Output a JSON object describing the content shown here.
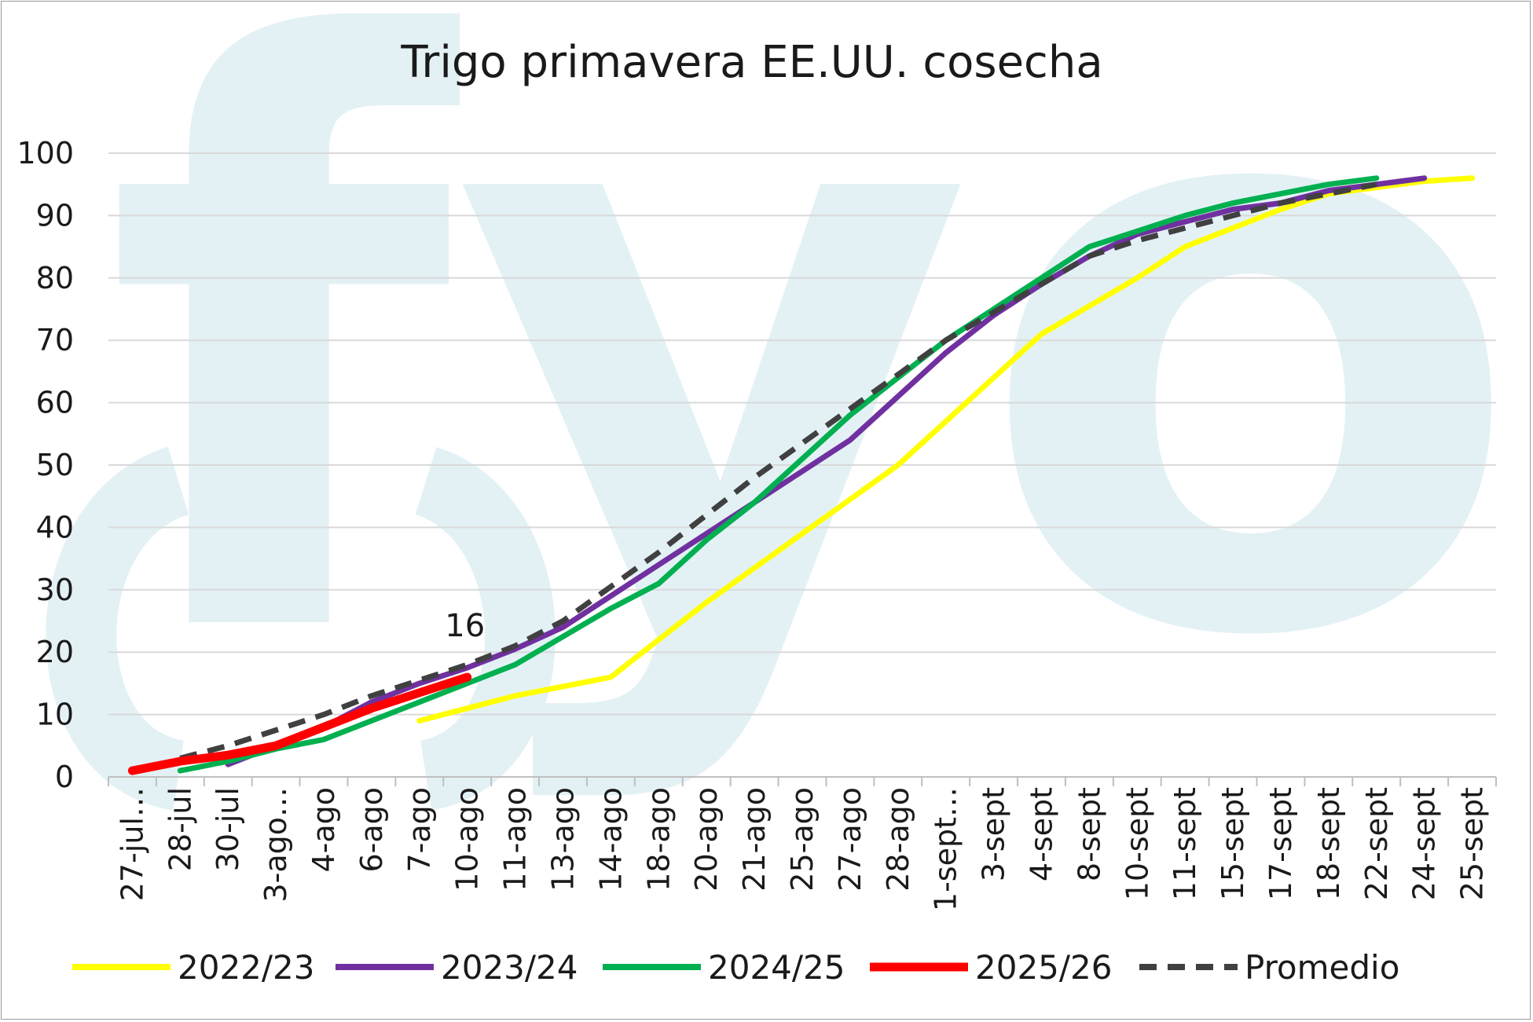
{
  "chart_data": {
    "type": "line",
    "title": "Trigo primavera EE.UU. cosecha",
    "xlabel": "",
    "ylabel": "",
    "ylim": [
      0,
      100
    ],
    "yticks": [
      0,
      10,
      20,
      30,
      40,
      50,
      60,
      70,
      80,
      90,
      100
    ],
    "grid": true,
    "legend_position": "bottom",
    "watermark": "fyo",
    "categories": [
      "27-jul…",
      "28-jul",
      "30-jul",
      "3-ago…",
      "4-ago",
      "6-ago",
      "7-ago",
      "10-ago",
      "11-ago",
      "13-ago",
      "14-ago",
      "18-ago",
      "20-ago",
      "21-ago",
      "25-ago",
      "27-ago",
      "28-ago",
      "1-sept…",
      "3-sept",
      "4-sept",
      "8-sept",
      "10-sept",
      "11-sept",
      "15-sept",
      "17-sept",
      "18-sept",
      "22-sept",
      "24-sept",
      "25-sept"
    ],
    "series": [
      {
        "name": "2022/23",
        "color": "#ffff00",
        "dashed": false,
        "values": [
          null,
          null,
          null,
          null,
          null,
          null,
          9,
          11,
          13,
          14.5,
          16,
          22,
          28,
          33.5,
          39,
          44.5,
          50,
          57,
          64,
          71,
          75.5,
          80,
          85,
          88,
          91,
          93.5,
          94.5,
          95.5,
          96
        ]
      },
      {
        "name": "2023/24",
        "color": "#7030a0",
        "dashed": false,
        "values": [
          null,
          null,
          2,
          5,
          8,
          12,
          15,
          17.5,
          20.5,
          24,
          29,
          34,
          39,
          44,
          49,
          54,
          61,
          68,
          74,
          79,
          83.5,
          87,
          89,
          91,
          92,
          94,
          95,
          96,
          null
        ]
      },
      {
        "name": "2024/25",
        "color": "#00b050",
        "dashed": false,
        "values": [
          null,
          1,
          2.5,
          4.5,
          6,
          9,
          12,
          15,
          18,
          22.5,
          27,
          31,
          38,
          44,
          51,
          58,
          64,
          70,
          75,
          80,
          85,
          87.5,
          90,
          92,
          93.5,
          95,
          96,
          null,
          null
        ]
      },
      {
        "name": "2025/26",
        "color": "#ff0000",
        "dashed": false,
        "values": [
          1,
          2.5,
          3.5,
          5,
          8,
          11,
          13.5,
          16,
          null,
          null,
          null,
          null,
          null,
          null,
          null,
          null,
          null,
          null,
          null,
          null,
          null,
          null,
          null,
          null,
          null,
          null,
          null,
          null,
          null
        ]
      },
      {
        "name": "Promedio",
        "color": "#404040",
        "dashed": true,
        "values": [
          null,
          3,
          5,
          7.5,
          10,
          13,
          15.5,
          18,
          21,
          25,
          30.5,
          36,
          42,
          48,
          53.5,
          59,
          64.5,
          70,
          74.5,
          79,
          83.5,
          86,
          88,
          90,
          92,
          93.5,
          95,
          null,
          null
        ]
      }
    ],
    "annotations": [
      {
        "text": "16",
        "category": "10-ago",
        "value": 16
      }
    ]
  }
}
